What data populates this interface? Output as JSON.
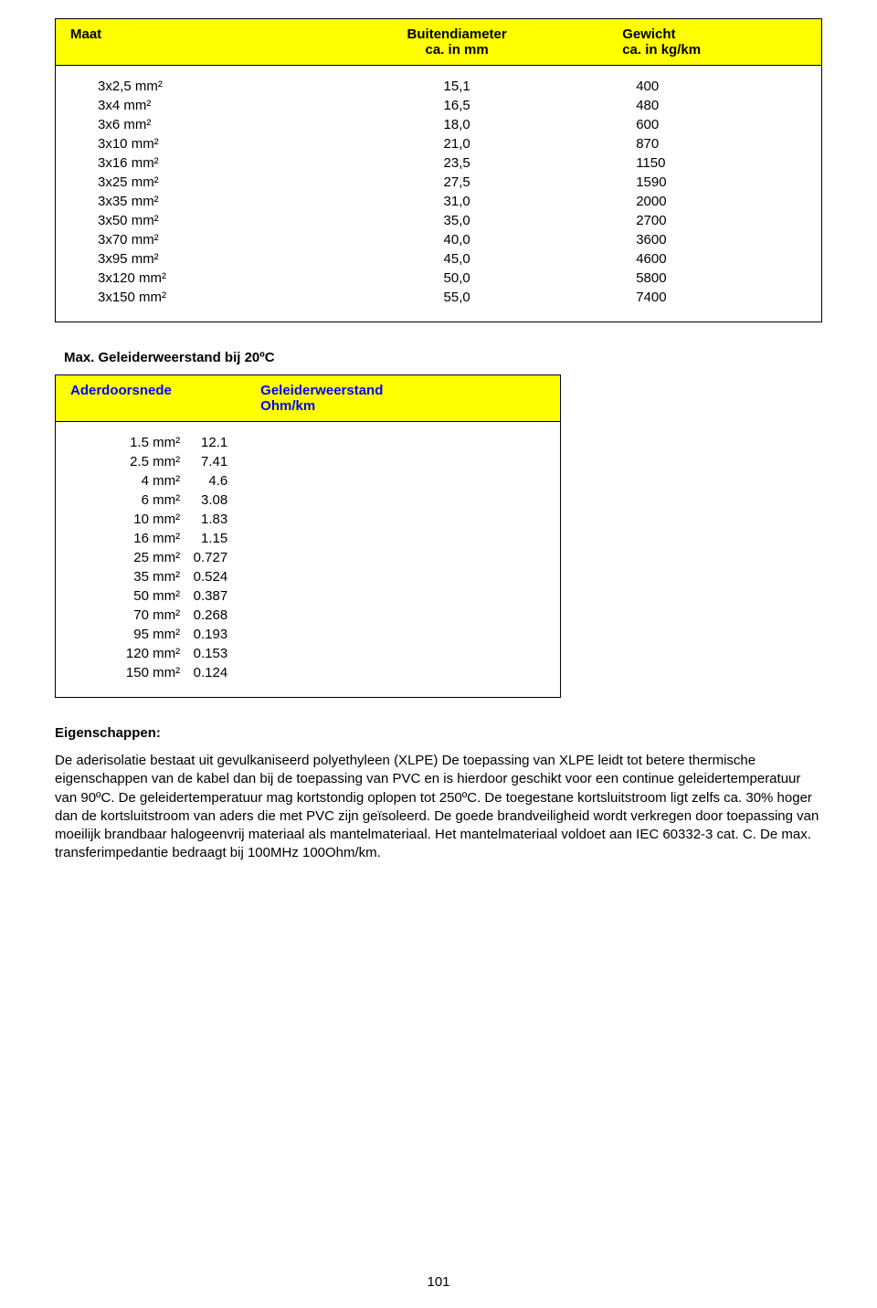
{
  "table1": {
    "headers": {
      "col1": "Maat",
      "col2_line1": "Buitendiameter",
      "col2_line2": "ca. in mm",
      "col3_line1": "Gewicht",
      "col3_line2": "ca. in kg/km"
    },
    "rows": [
      {
        "size": "3x2,5 mm²",
        "dia": "15,1",
        "wt": "400"
      },
      {
        "size": "3x4 mm²",
        "dia": "16,5",
        "wt": "480"
      },
      {
        "size": "3x6 mm²",
        "dia": "18,0",
        "wt": "600"
      },
      {
        "size": "3x10 mm²",
        "dia": "21,0",
        "wt": "870"
      },
      {
        "size": "3x16 mm²",
        "dia": "23,5",
        "wt": "1150"
      },
      {
        "size": "3x25 mm²",
        "dia": "27,5",
        "wt": "1590"
      },
      {
        "size": "3x35 mm²",
        "dia": "31,0",
        "wt": "2000"
      },
      {
        "size": "3x50 mm²",
        "dia": "35,0",
        "wt": "2700"
      },
      {
        "size": "3x70 mm²",
        "dia": "40,0",
        "wt": "3600"
      },
      {
        "size": "3x95 mm²",
        "dia": "45,0",
        "wt": "4600"
      },
      {
        "size": "3x120 mm²",
        "dia": "50,0",
        "wt": "5800"
      },
      {
        "size": "3x150 mm²",
        "dia": "55,0",
        "wt": "7400"
      }
    ]
  },
  "resistance": {
    "section_title": "Max. Geleiderweerstand bij 20ºC",
    "headers": {
      "col1": "Aderdoorsnede",
      "col2_line1": "Geleiderweerstand",
      "col2_line2": "Ohm/km"
    },
    "rows": [
      {
        "area": "1.5 mm²",
        "ohm": "12.1"
      },
      {
        "area": "2.5 mm²",
        "ohm": "7.41"
      },
      {
        "area": "4 mm²",
        "ohm": "4.6"
      },
      {
        "area": "6 mm²",
        "ohm": "3.08"
      },
      {
        "area": "10 mm²",
        "ohm": "1.83"
      },
      {
        "area": "16 mm²",
        "ohm": "1.15"
      },
      {
        "area": "25 mm²",
        "ohm": "0.727"
      },
      {
        "area": "35 mm²",
        "ohm": "0.524"
      },
      {
        "area": "50 mm²",
        "ohm": "0.387"
      },
      {
        "area": "70 mm²",
        "ohm": "0.268"
      },
      {
        "area": "95 mm²",
        "ohm": "0.193"
      },
      {
        "area": "120 mm²",
        "ohm": "0.153"
      },
      {
        "area": "150 mm²",
        "ohm": "0.124"
      }
    ]
  },
  "properties": {
    "title": "Eigenschappen:",
    "text": "De aderisolatie bestaat uit gevulkaniseerd polyethyleen (XLPE) De toepassing van XLPE leidt tot betere thermische eigenschappen van de kabel dan bij de toepassing van PVC en is hierdoor geschikt voor een continue geleidertemperatuur van 90ºC. De geleidertemperatuur mag kortstondig oplopen tot 250ºC. De toegestane kortsluitstroom ligt zelfs ca. 30% hoger dan de kortsluitstroom van aders die met PVC zijn geïsoleerd. De goede brandveiligheid wordt verkregen door toepassing van moeilijk brandbaar halogeenvrij materiaal als mantelmateriaal. Het mantelmateriaal voldoet aan IEC 60332-3 cat. C. De max. transferimpedantie bedraagt bij 100MHz 100Ohm/km."
  },
  "page_number": "101",
  "colors": {
    "header_bg": "#ffff00",
    "header_text_blue": "#0000ff",
    "border": "#000000",
    "text": "#000000",
    "background": "#ffffff"
  }
}
